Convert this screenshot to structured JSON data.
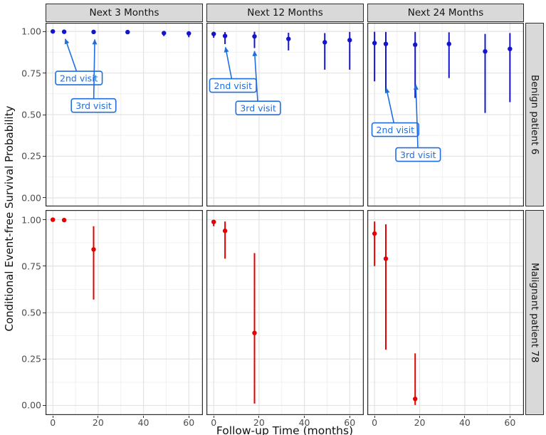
{
  "chart_data": {
    "type": "scatter",
    "title": "",
    "xlabel": "Follow-up Time (months)",
    "ylabel": "Conditional Event-free Survival Probability",
    "col_facets": [
      "Next 3 Months",
      "Next 12 Months",
      "Next 24 Months"
    ],
    "row_facets": [
      "Benign patient 6",
      "Malignant patient 78"
    ],
    "x_ticks": [
      0,
      20,
      40,
      60
    ],
    "y_ticks": [
      1.0,
      0.75,
      0.5,
      0.25,
      0.0
    ],
    "x_minor": [
      10,
      30,
      50
    ],
    "y_minor": [
      0.125,
      0.375,
      0.625,
      0.875
    ],
    "xlim": [
      -3.2,
      66.2
    ],
    "ylim": [
      -0.052,
      1.052
    ],
    "colors": {
      "benign": "#1414cc",
      "malignant": "#e60000",
      "annotation": "#1e6ee0"
    },
    "panels": [
      {
        "row": 0,
        "col": 0,
        "series": "benign",
        "points": [
          {
            "x": 0,
            "y": 1.0,
            "lo": 1.0,
            "hi": 1.0
          },
          {
            "x": 5,
            "y": 0.998,
            "lo": 0.992,
            "hi": 1.0
          },
          {
            "x": 18,
            "y": 0.997,
            "lo": 0.99,
            "hi": 1.0
          },
          {
            "x": 33,
            "y": 0.996,
            "lo": 0.988,
            "hi": 1.0
          },
          {
            "x": 49,
            "y": 0.99,
            "lo": 0.972,
            "hi": 0.999
          },
          {
            "x": 60,
            "y": 0.988,
            "lo": 0.965,
            "hi": 0.999
          }
        ],
        "annotations": [
          {
            "label": "2nd visit",
            "box_x": 11.5,
            "box_y": 0.72,
            "target_x": 5.5,
            "target_y": 0.955
          },
          {
            "label": "3rd visit",
            "box_x": 18.0,
            "box_y": 0.555,
            "target_x": 18.5,
            "target_y": 0.952
          }
        ]
      },
      {
        "row": 0,
        "col": 1,
        "series": "benign",
        "points": [
          {
            "x": 0,
            "y": 0.985,
            "lo": 0.962,
            "hi": 0.998
          },
          {
            "x": 5,
            "y": 0.973,
            "lo": 0.924,
            "hi": 0.996
          },
          {
            "x": 18,
            "y": 0.97,
            "lo": 0.9,
            "hi": 0.998
          },
          {
            "x": 33,
            "y": 0.955,
            "lo": 0.886,
            "hi": 0.992
          },
          {
            "x": 49,
            "y": 0.935,
            "lo": 0.77,
            "hi": 0.99
          },
          {
            "x": 60,
            "y": 0.948,
            "lo": 0.77,
            "hi": 0.997
          }
        ],
        "annotations": [
          {
            "label": "2nd visit",
            "box_x": 8.5,
            "box_y": 0.675,
            "target_x": 5.2,
            "target_y": 0.905
          },
          {
            "label": "3rd visit",
            "box_x": 19.6,
            "box_y": 0.54,
            "target_x": 18.0,
            "target_y": 0.882
          }
        ]
      },
      {
        "row": 0,
        "col": 2,
        "series": "benign",
        "points": [
          {
            "x": 0,
            "y": 0.93,
            "lo": 0.7,
            "hi": 0.998
          },
          {
            "x": 5,
            "y": 0.925,
            "lo": 0.635,
            "hi": 0.997
          },
          {
            "x": 18,
            "y": 0.92,
            "lo": 0.6,
            "hi": 0.997
          },
          {
            "x": 33,
            "y": 0.925,
            "lo": 0.72,
            "hi": 0.995
          },
          {
            "x": 49,
            "y": 0.88,
            "lo": 0.51,
            "hi": 0.985
          },
          {
            "x": 60,
            "y": 0.895,
            "lo": 0.575,
            "hi": 0.99
          }
        ],
        "annotations": [
          {
            "label": "2nd visit",
            "box_x": 9.2,
            "box_y": 0.41,
            "target_x": 5.2,
            "target_y": 0.66
          },
          {
            "label": "3rd visit",
            "box_x": 19.3,
            "box_y": 0.26,
            "target_x": 18.3,
            "target_y": 0.68
          }
        ]
      },
      {
        "row": 1,
        "col": 0,
        "series": "malignant",
        "points": [
          {
            "x": 0,
            "y": 1.0,
            "lo": 1.0,
            "hi": 1.0
          },
          {
            "x": 5,
            "y": 0.998,
            "lo": 0.992,
            "hi": 1.0
          },
          {
            "x": 18,
            "y": 0.84,
            "lo": 0.57,
            "hi": 0.965
          }
        ],
        "annotations": []
      },
      {
        "row": 1,
        "col": 1,
        "series": "malignant",
        "points": [
          {
            "x": 0,
            "y": 0.988,
            "lo": 0.965,
            "hi": 0.998
          },
          {
            "x": 5,
            "y": 0.94,
            "lo": 0.79,
            "hi": 0.99
          },
          {
            "x": 18,
            "y": 0.39,
            "lo": 0.01,
            "hi": 0.82
          }
        ],
        "annotations": []
      },
      {
        "row": 1,
        "col": 2,
        "series": "malignant",
        "points": [
          {
            "x": 0,
            "y": 0.925,
            "lo": 0.75,
            "hi": 0.99
          },
          {
            "x": 5,
            "y": 0.79,
            "lo": 0.3,
            "hi": 0.975
          },
          {
            "x": 18,
            "y": 0.035,
            "lo": 0.002,
            "hi": 0.28
          }
        ],
        "annotations": []
      }
    ]
  }
}
